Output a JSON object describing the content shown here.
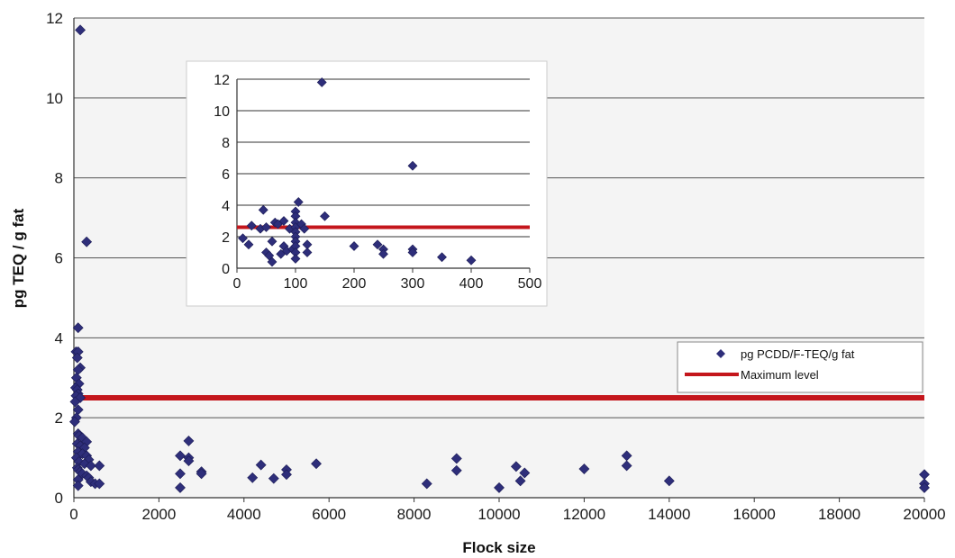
{
  "colors": {
    "point": "#2e2e7a",
    "max_level_line": "#c4161c",
    "plot_bg": "#f4f4f4",
    "gridline": "#555555",
    "inset_bg": "#ffffff"
  },
  "chart_data": [
    {
      "type": "scatter",
      "title": "",
      "xlabel": "Flock size",
      "ylabel": "pg TEQ / g fat",
      "xlim": [
        0,
        20000
      ],
      "ylim": [
        0,
        12
      ],
      "x_ticks": [
        "0",
        "2000",
        "4000",
        "6000",
        "8000",
        "10000",
        "12000",
        "14000",
        "16000",
        "18000",
        "20000"
      ],
      "y_ticks": [
        "0",
        "2",
        "4",
        "6",
        "8",
        "10",
        "12"
      ],
      "grid": "horizontal",
      "legend_position": "right",
      "series": [
        {
          "name": "pg PCDD/F-TEQ/g fat",
          "marker": "diamond",
          "points": [
            [
              150,
              11.7
            ],
            [
              300,
              6.4
            ],
            [
              100,
              4.25
            ],
            [
              50,
              3.65
            ],
            [
              100,
              3.65
            ],
            [
              80,
              3.5
            ],
            [
              150,
              3.25
            ],
            [
              100,
              3.2
            ],
            [
              60,
              3.0
            ],
            [
              120,
              2.85
            ],
            [
              40,
              2.75
            ],
            [
              80,
              2.7
            ],
            [
              100,
              2.6
            ],
            [
              50,
              2.55
            ],
            [
              150,
              2.5
            ],
            [
              30,
              2.4
            ],
            [
              100,
              2.2
            ],
            [
              60,
              2.0
            ],
            [
              20,
              1.9
            ],
            [
              100,
              1.6
            ],
            [
              120,
              1.55
            ],
            [
              200,
              1.5
            ],
            [
              300,
              1.4
            ],
            [
              80,
              1.35
            ],
            [
              150,
              1.3
            ],
            [
              250,
              1.25
            ],
            [
              100,
              1.15
            ],
            [
              200,
              1.1
            ],
            [
              300,
              1.05
            ],
            [
              60,
              1.0
            ],
            [
              350,
              0.95
            ],
            [
              120,
              0.9
            ],
            [
              250,
              0.85
            ],
            [
              400,
              0.8
            ],
            [
              80,
              0.75
            ],
            [
              100,
              0.7
            ],
            [
              150,
              0.65
            ],
            [
              200,
              0.6
            ],
            [
              300,
              0.55
            ],
            [
              350,
              0.5
            ],
            [
              100,
              0.45
            ],
            [
              400,
              0.4
            ],
            [
              500,
              0.35
            ],
            [
              100,
              0.3
            ],
            [
              600,
              0.8
            ],
            [
              600,
              0.35
            ],
            [
              2500,
              1.05
            ],
            [
              2700,
              1.42
            ],
            [
              2700,
              1.0
            ],
            [
              2700,
              0.92
            ],
            [
              2500,
              0.6
            ],
            [
              2500,
              0.25
            ],
            [
              3000,
              0.65
            ],
            [
              3000,
              0.6
            ],
            [
              4200,
              0.5
            ],
            [
              4400,
              0.82
            ],
            [
              4700,
              0.48
            ],
            [
              5000,
              0.7
            ],
            [
              5000,
              0.58
            ],
            [
              5700,
              0.85
            ],
            [
              8300,
              0.35
            ],
            [
              9000,
              0.98
            ],
            [
              9000,
              0.68
            ],
            [
              10000,
              0.25
            ],
            [
              10400,
              0.78
            ],
            [
              10500,
              0.42
            ],
            [
              10600,
              0.62
            ],
            [
              12000,
              0.72
            ],
            [
              13000,
              1.05
            ],
            [
              13000,
              0.8
            ],
            [
              14000,
              0.42
            ],
            [
              20000,
              0.58
            ],
            [
              20000,
              0.35
            ],
            [
              20000,
              0.25
            ]
          ]
        },
        {
          "name": "Maximum level",
          "type": "line",
          "value": 2.5
        }
      ]
    },
    {
      "type": "scatter",
      "title": "",
      "xlabel": "",
      "ylabel": "",
      "xlim": [
        0,
        500
      ],
      "ylim": [
        0,
        12
      ],
      "x_ticks": [
        "0",
        "100",
        "200",
        "300",
        "400",
        "500"
      ],
      "y_ticks": [
        "0",
        "2",
        "4",
        "6",
        "8",
        "10",
        "12"
      ],
      "grid": "horizontal",
      "series": [
        {
          "name": "pg PCDD/F-TEQ/g fat",
          "marker": "diamond",
          "points": [
            [
              10,
              1.9
            ],
            [
              20,
              1.5
            ],
            [
              25,
              2.7
            ],
            [
              40,
              2.5
            ],
            [
              45,
              3.7
            ],
            [
              50,
              2.6
            ],
            [
              50,
              1.0
            ],
            [
              55,
              0.8
            ],
            [
              60,
              1.7
            ],
            [
              60,
              0.4
            ],
            [
              65,
              2.9
            ],
            [
              70,
              2.8
            ],
            [
              75,
              0.9
            ],
            [
              80,
              3.0
            ],
            [
              80,
              1.4
            ],
            [
              85,
              1.1
            ],
            [
              90,
              2.5
            ],
            [
              95,
              1.2
            ],
            [
              100,
              3.6
            ],
            [
              100,
              3.3
            ],
            [
              100,
              2.9
            ],
            [
              100,
              2.6
            ],
            [
              100,
              2.3
            ],
            [
              100,
              2.0
            ],
            [
              100,
              1.7
            ],
            [
              100,
              1.4
            ],
            [
              100,
              1.0
            ],
            [
              100,
              0.6
            ],
            [
              105,
              4.2
            ],
            [
              110,
              2.8
            ],
            [
              115,
              2.5
            ],
            [
              120,
              1.5
            ],
            [
              120,
              1.0
            ],
            [
              145,
              11.8
            ],
            [
              150,
              3.3
            ],
            [
              200,
              1.4
            ],
            [
              240,
              1.5
            ],
            [
              250,
              1.2
            ],
            [
              250,
              0.9
            ],
            [
              300,
              6.5
            ],
            [
              300,
              1.2
            ],
            [
              300,
              1.0
            ],
            [
              350,
              0.7
            ],
            [
              400,
              0.5
            ]
          ]
        },
        {
          "name": "Maximum level",
          "type": "line",
          "value": 2.6
        }
      ]
    }
  ]
}
